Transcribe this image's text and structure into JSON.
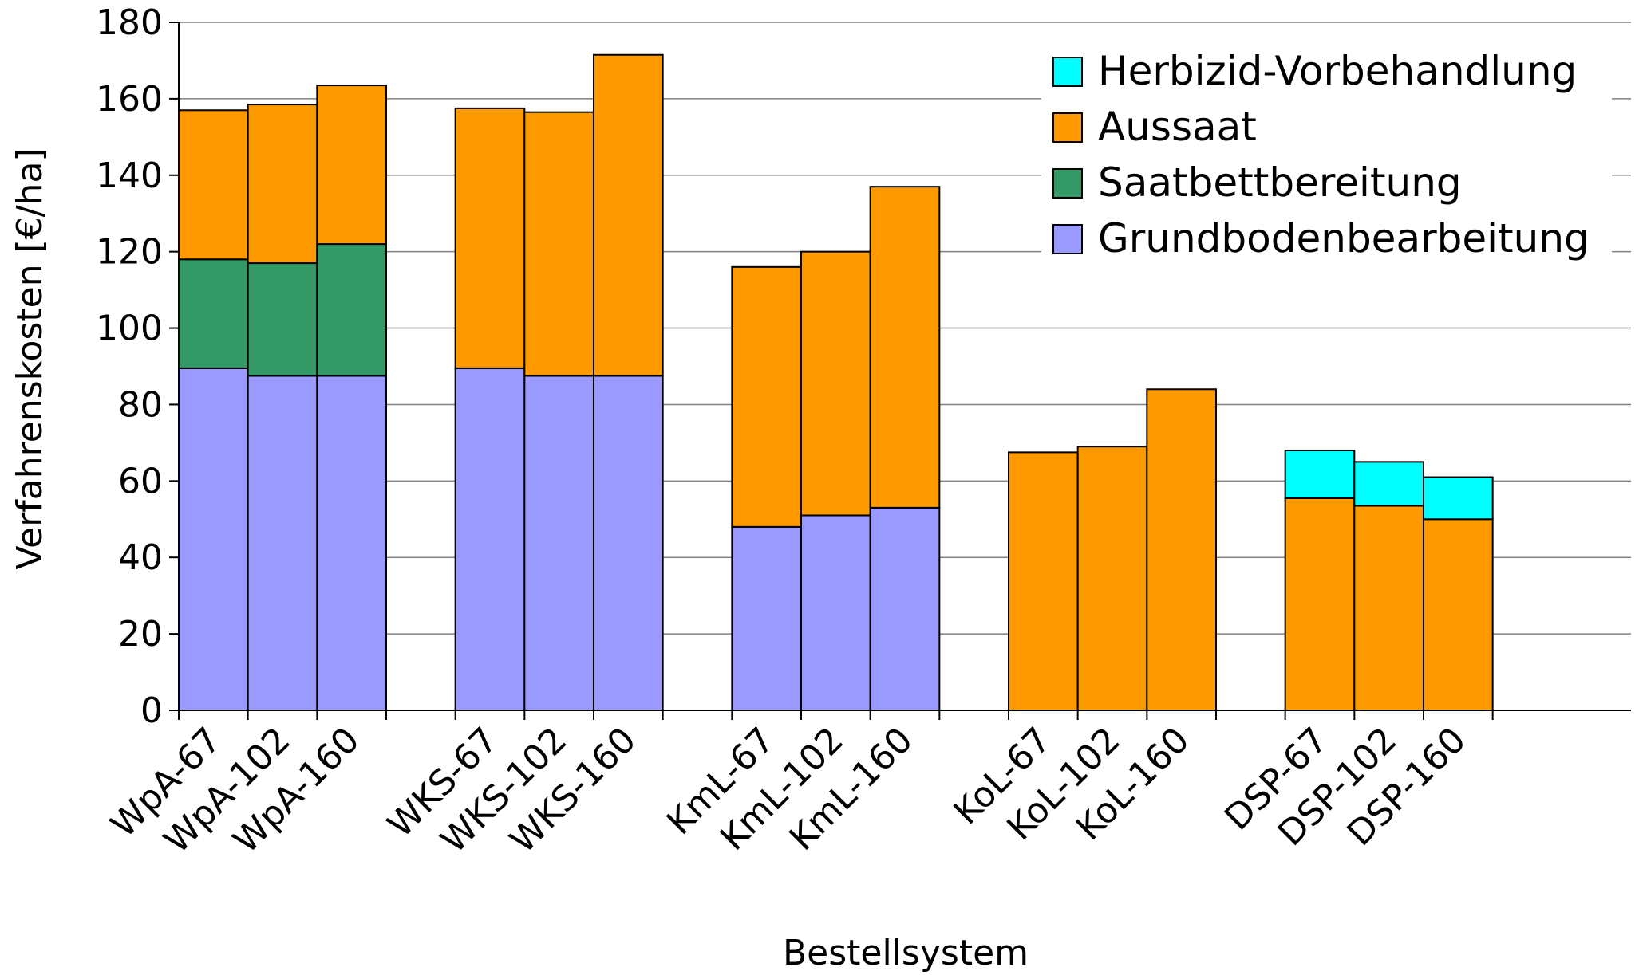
{
  "chart_data": {
    "type": "bar",
    "stacked": true,
    "xlabel": "Bestellsystem",
    "ylabel": "Verfahrenskosten [€/ha]",
    "ylim": [
      0,
      180
    ],
    "yticks": [
      0,
      20,
      40,
      60,
      80,
      100,
      120,
      140,
      160,
      180
    ],
    "grid": true,
    "legend_position": "top-right",
    "categories": [
      "WpA-67",
      "WpA-102",
      "WpA-160",
      "",
      "WKS-67",
      "WKS-102",
      "WKS-160",
      "",
      "KmL-67",
      "KmL-102",
      "KmL-160",
      "",
      "KoL-67",
      "KoL-102",
      "KoL-160",
      "",
      "DSP-67",
      "DSP-102",
      "DSP-160"
    ],
    "series": [
      {
        "name": "Grundbodenbearbeitung",
        "color": "#9999ff",
        "values": [
          89.5,
          87.5,
          87.5,
          0,
          89.5,
          87.5,
          87.5,
          0,
          48,
          51,
          53,
          0,
          0,
          0,
          0,
          0,
          0,
          0,
          0
        ]
      },
      {
        "name": "Saatbettbereitung",
        "color": "#339966",
        "values": [
          28.5,
          29.5,
          34.5,
          0,
          0,
          0,
          0,
          0,
          0,
          0,
          0,
          0,
          0,
          0,
          0,
          0,
          0,
          0,
          0
        ]
      },
      {
        "name": "Aussaat",
        "color": "#ff9900",
        "values": [
          39,
          41.5,
          41.5,
          0,
          68,
          69,
          84,
          0,
          68,
          69,
          84,
          0,
          67.5,
          69,
          84,
          0,
          55.5,
          53.5,
          50
        ]
      },
      {
        "name": "Herbizid-Vorbehandlung",
        "color": "#00ffff",
        "values": [
          0,
          0,
          0,
          0,
          0,
          0,
          0,
          0,
          0,
          0,
          0,
          0,
          0,
          0,
          0,
          0,
          12.5,
          11.5,
          11
        ]
      }
    ],
    "legend_order": [
      "Herbizid-Vorbehandlung",
      "Aussaat",
      "Saatbettbereitung",
      "Grundbodenbearbeitung"
    ]
  }
}
